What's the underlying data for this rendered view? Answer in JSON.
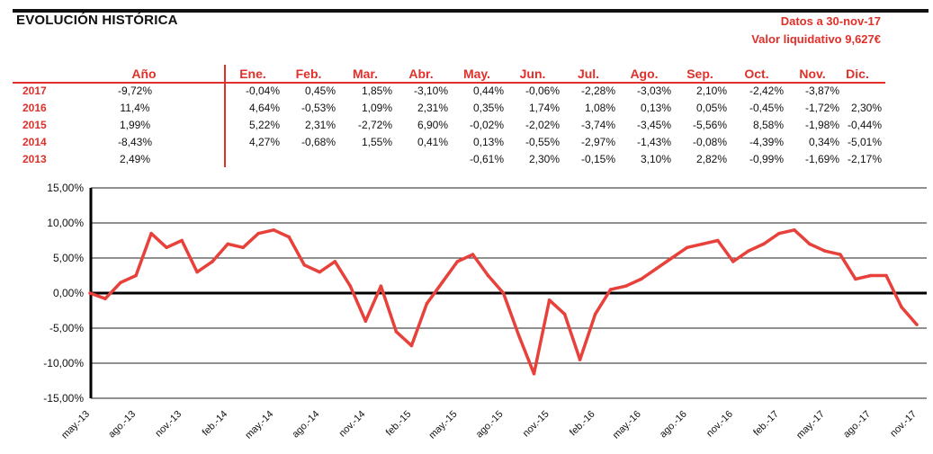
{
  "header": {
    "title": "EVOLUCIÓN HISTÓRICA",
    "date_line": "Datos a 30-nov-17",
    "nav_line": "Valor liquidativo 9,627€"
  },
  "table": {
    "year_header": "Año",
    "months": [
      "Ene.",
      "Feb.",
      "Mar.",
      "Abr.",
      "May.",
      "Jun.",
      "Jul.",
      "Ago.",
      "Sep.",
      "Oct.",
      "Nov.",
      "Dic."
    ],
    "rows": [
      {
        "year": "2017",
        "annual": "-9,72%",
        "values": [
          "-0,04%",
          "0,45%",
          "1,85%",
          "-3,10%",
          "0,44%",
          "-0,06%",
          "-2,28%",
          "-3,03%",
          "2,10%",
          "-2,42%",
          "-3,87%",
          ""
        ]
      },
      {
        "year": "2016",
        "annual": "11,4%",
        "values": [
          "4,64%",
          "-0,53%",
          "1,09%",
          "2,31%",
          "0,35%",
          "1,74%",
          "1,08%",
          "0,13%",
          "0,05%",
          "-0,45%",
          "-1,72%",
          "2,30%"
        ]
      },
      {
        "year": "2015",
        "annual": "1,99%",
        "values": [
          "5,22%",
          "2,31%",
          "-2,72%",
          "6,90%",
          "-0,02%",
          "-2,02%",
          "-3,74%",
          "-3,45%",
          "-5,56%",
          "8,58%",
          "-1,98%",
          "-0,44%"
        ]
      },
      {
        "year": "2014",
        "annual": "-8,43%",
        "values": [
          "4,27%",
          "-0,68%",
          "1,55%",
          "0,41%",
          "0,13%",
          "-0,55%",
          "-2,97%",
          "-1,43%",
          "-0,08%",
          "-4,39%",
          "0,34%",
          "-5,01%"
        ]
      },
      {
        "year": "2013",
        "annual": "2,49%",
        "values": [
          "",
          "",
          "",
          "",
          "-0,61%",
          "2,30%",
          "-0,15%",
          "3,10%",
          "2,82%",
          "-0,99%",
          "-1,69%",
          "-2,17%"
        ]
      }
    ]
  },
  "chart_data": {
    "type": "line",
    "title": "",
    "xlabel": "",
    "ylabel": "",
    "ylim": [
      -15,
      15
    ],
    "y_ticks": [
      "15,00%",
      "10,00%",
      "5,00%",
      "0,00%",
      "-5,00%",
      "-10,00%",
      "-15,00%"
    ],
    "y_tick_values": [
      15,
      10,
      5,
      0,
      -5,
      -10,
      -15
    ],
    "x_ticks": [
      "may.-13",
      "ago.-13",
      "nov.-13",
      "feb.-14",
      "may.-14",
      "ago.-14",
      "nov.-14",
      "feb.-15",
      "may.-15",
      "ago.-15",
      "nov.-15",
      "feb.-16",
      "may.-16",
      "ago.-16",
      "nov.-16",
      "feb.-17",
      "may.-17",
      "ago.-17",
      "nov.-17"
    ],
    "grid": true,
    "line_color": "#e8403a",
    "series": [
      {
        "x": [
          "may.-13",
          "jun.-13",
          "jul.-13",
          "ago.-13",
          "sep.-13",
          "oct.-13",
          "nov.-13",
          "dic.-13",
          "ene.-14",
          "feb.-14",
          "mar.-14",
          "abr.-14",
          "may.-14",
          "jun.-14",
          "jul.-14",
          "ago.-14",
          "sep.-14",
          "oct.-14",
          "nov.-14",
          "dic.-14",
          "ene.-15",
          "feb.-15",
          "mar.-15",
          "abr.-15",
          "may.-15",
          "jun.-15",
          "jul.-15",
          "ago.-15",
          "sep.-15",
          "oct.-15",
          "nov.-15",
          "dic.-15",
          "ene.-16",
          "feb.-16",
          "mar.-16",
          "abr.-16",
          "may.-16",
          "jun.-16",
          "jul.-16",
          "ago.-16",
          "sep.-16",
          "oct.-16",
          "nov.-16",
          "dic.-16",
          "ene.-17",
          "feb.-17",
          "mar.-17",
          "abr.-17",
          "may.-17",
          "jun.-17",
          "jul.-17",
          "ago.-17",
          "sep.-17",
          "oct.-17",
          "nov.-17"
        ],
        "values": [
          0.0,
          -0.8,
          1.5,
          2.5,
          8.5,
          6.5,
          7.5,
          3.0,
          4.5,
          7.0,
          6.5,
          8.5,
          9.0,
          8.0,
          4.0,
          3.0,
          4.5,
          1.0,
          -4.0,
          1.0,
          -5.5,
          -7.5,
          -1.5,
          1.5,
          4.5,
          5.5,
          2.5,
          0.0,
          -6.0,
          -11.5,
          -1.0,
          -3.0,
          -9.5,
          -3.0,
          0.5,
          1.0,
          2.0,
          3.5,
          5.0,
          6.5,
          7.0,
          7.5,
          4.5,
          6.0,
          7.0,
          8.5,
          9.0,
          7.0,
          6.0,
          5.5,
          2.0,
          2.5,
          2.5,
          -2.0,
          -4.5
        ]
      }
    ]
  }
}
